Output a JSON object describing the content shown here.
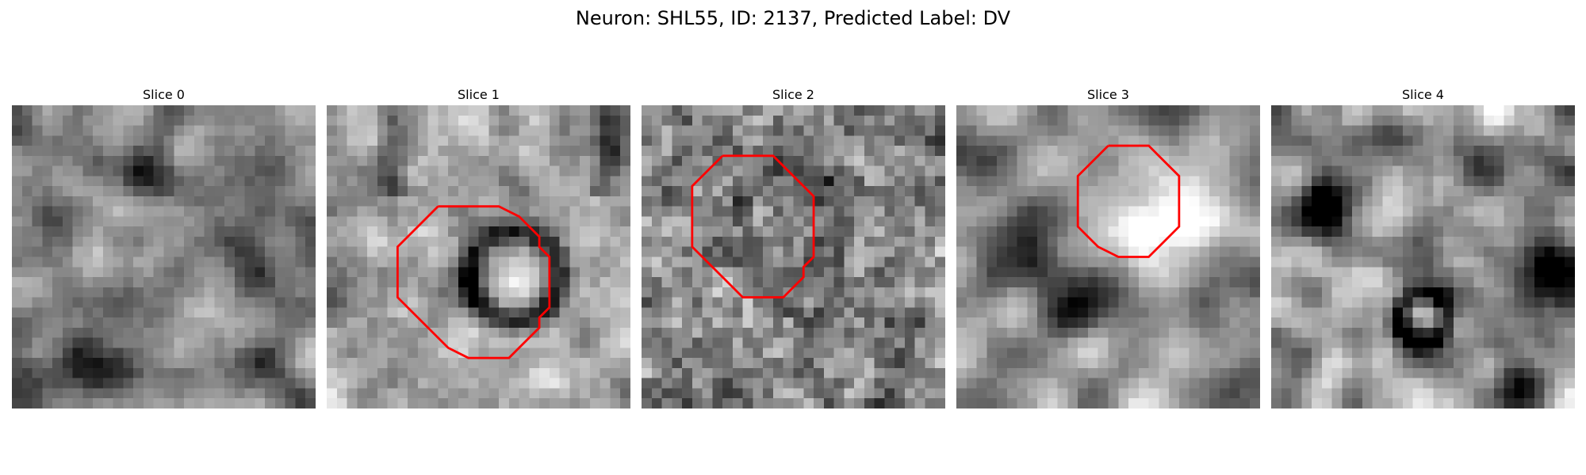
{
  "figure": {
    "title": "Neuron: SHL55, ID: 2137, Predicted Label: DV"
  },
  "colors": {
    "background": "#ffffff",
    "contour": "#ff0000",
    "colormap": "gray"
  },
  "panels": [
    {
      "title": "Slice 0",
      "has_contour": false
    },
    {
      "title": "Slice 1",
      "has_contour": true
    },
    {
      "title": "Slice 2",
      "has_contour": true
    },
    {
      "title": "Slice 3",
      "has_contour": true
    },
    {
      "title": "Slice 4",
      "has_contour": false
    }
  ]
}
